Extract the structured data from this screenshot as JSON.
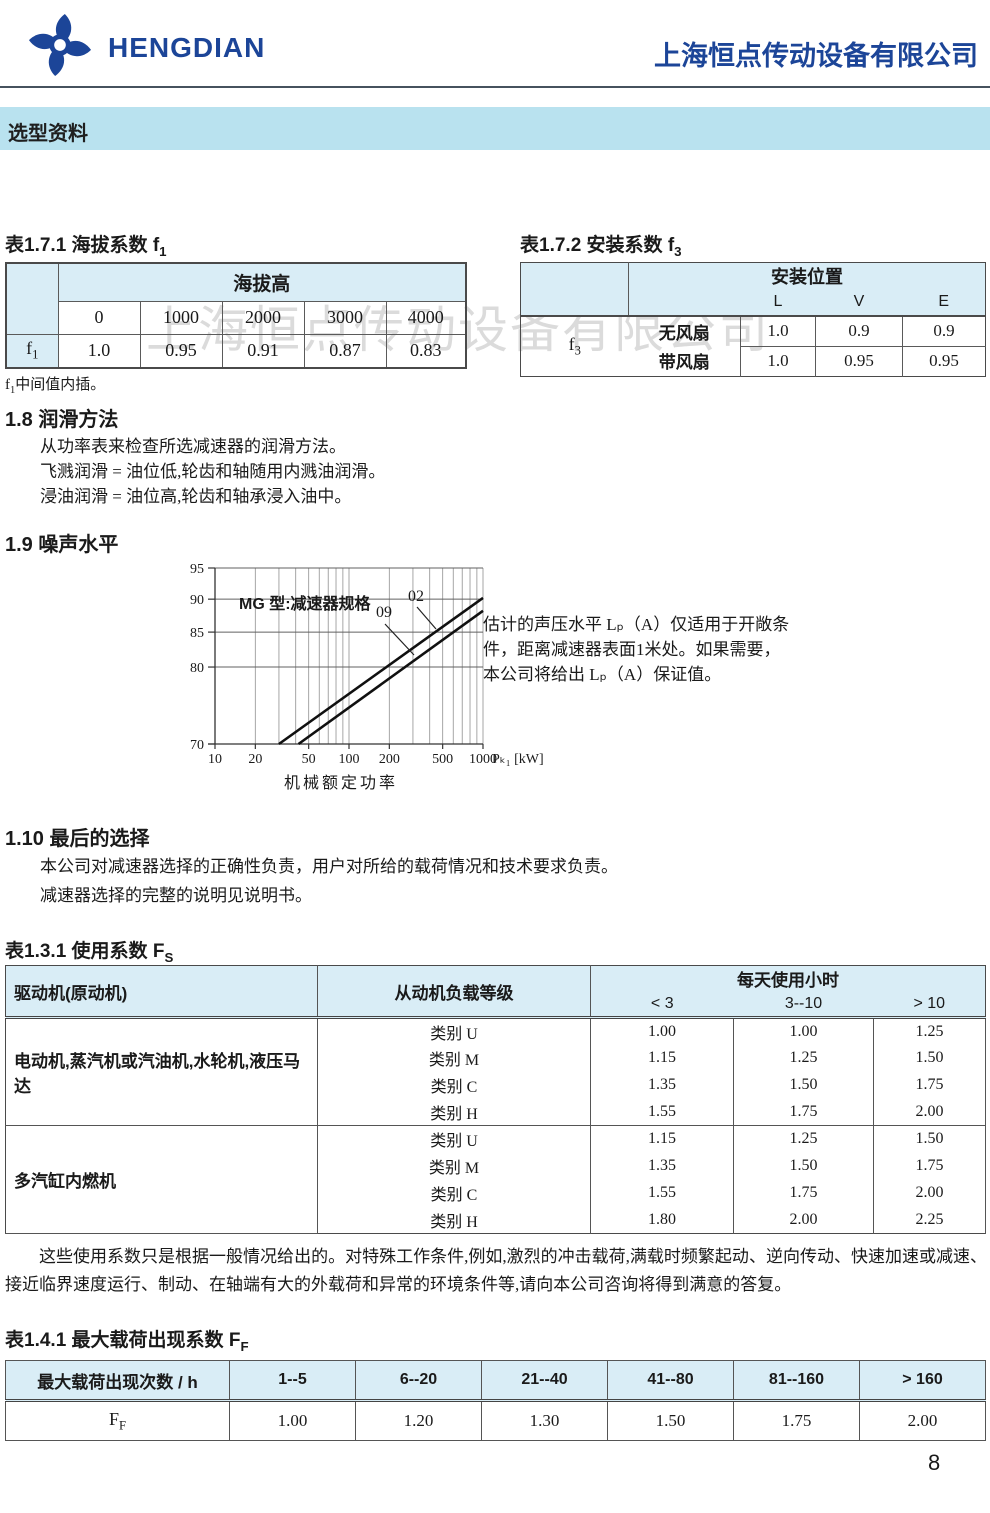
{
  "header": {
    "logo_text": "HENGDIAN",
    "company_name": "上海恒点传动设备有限公司",
    "banner": "选型资料"
  },
  "watermark": "上海恒点传动设备有限公司",
  "colors": {
    "brand_blue": "#1c4598",
    "banner_blue": "#b9e2ef",
    "table_header_blue": "#d9edf6",
    "watermark_gray": "#b0b0b0"
  },
  "table_f1": {
    "title_text": "表1.7.1 海拔系数 f",
    "title_sub": "1",
    "header": "海拔高",
    "row_label_text": "f",
    "row_label_sub": "1",
    "altitudes": [
      "0",
      "1000",
      "2000",
      "3000",
      "4000"
    ],
    "values": [
      "1.0",
      "0.95",
      "0.91",
      "0.87",
      "0.83"
    ],
    "note_f": "f",
    "note_sub": "1",
    "note_text": "中间值内插。"
  },
  "table_f3": {
    "title_text": "表1.7.2 安装系数 f",
    "title_sub": "3",
    "header": "安装位置",
    "col_labels": [
      "L",
      "V",
      "E"
    ],
    "row_label_text": "f",
    "row_label_sub": "3",
    "rows": [
      {
        "label": "无风扇",
        "values": [
          "1.0",
          "0.9",
          "0.9"
        ]
      },
      {
        "label": "带风扇",
        "values": [
          "1.0",
          "0.95",
          "0.95"
        ]
      }
    ]
  },
  "section_1_8": {
    "heading": "1.8 润滑方法",
    "lines": [
      "从功率表来检查所选减速器的润滑方法。",
      "飞溅润滑 = 油位低,轮齿和轴随用内溅油润滑。",
      "浸油润滑 = 油位高,轮齿和轴承浸入油中。"
    ]
  },
  "section_1_9": {
    "heading": "1.9 噪声水平",
    "note_lines": [
      "估计的声压水平 Lₚ（A）仅适用于开敞条",
      "件，距离减速器表面1米处。如果需要，",
      "本公司将给出 Lₚ（A）保证值。"
    ]
  },
  "chart_data": {
    "type": "line",
    "x_scale": "log",
    "y_scale": "log",
    "xlim": [
      10,
      1000
    ],
    "ylim": [
      70,
      95
    ],
    "x_ticks": [
      10,
      20,
      50,
      100,
      200,
      500,
      1000
    ],
    "x_minor": [
      10,
      20,
      30,
      40,
      50,
      60,
      70,
      80,
      90,
      100,
      200,
      300,
      400,
      500,
      600,
      700,
      800,
      900,
      1000
    ],
    "y_ticks": [
      70,
      80,
      85,
      90,
      95
    ],
    "xlabel": "机械额定功率",
    "x_unit": "Pₖ₁ [kW]",
    "annotation": "MG 型:减速器规格",
    "grid": true,
    "legend": "inline-labels",
    "series": [
      {
        "name": "02",
        "points": [
          [
            30,
            70
          ],
          [
            1000,
            90.2
          ]
        ]
      },
      {
        "name": "09",
        "points": [
          [
            42,
            70
          ],
          [
            1000,
            88.2
          ]
        ]
      }
    ]
  },
  "section_1_10": {
    "heading": "1.10 最后的选择",
    "lines": [
      "本公司对减速器选择的正确性负责，用户对所给的载荷情况和技术要求负责。",
      "减速器选择的完整的说明见说明书。"
    ]
  },
  "table_fs": {
    "title_text": "表1.3.1 使用系数 F",
    "title_sub": "S",
    "col1_header": "驱动机(原动机)",
    "col2_header": "从动机负载等级",
    "hours_header": "每天使用小时",
    "hour_cols": [
      "< 3",
      "3--10",
      "> 10"
    ],
    "groups": [
      {
        "driver": "电动机,蒸汽机或汽油机,水轮机,液压马达",
        "rows": [
          {
            "category": "类别 U",
            "values": [
              "1.00",
              "1.00",
              "1.25"
            ]
          },
          {
            "category": "类别 M",
            "values": [
              "1.15",
              "1.25",
              "1.50"
            ]
          },
          {
            "category": "类别 C",
            "values": [
              "1.35",
              "1.50",
              "1.75"
            ]
          },
          {
            "category": "类别 H",
            "values": [
              "1.55",
              "1.75",
              "2.00"
            ]
          }
        ]
      },
      {
        "driver": "多汽缸内燃机",
        "rows": [
          {
            "category": "类别 U",
            "values": [
              "1.15",
              "1.25",
              "1.50"
            ]
          },
          {
            "category": "类别 M",
            "values": [
              "1.35",
              "1.50",
              "1.75"
            ]
          },
          {
            "category": "类别 C",
            "values": [
              "1.55",
              "1.75",
              "2.00"
            ]
          },
          {
            "category": "类别 H",
            "values": [
              "1.80",
              "2.00",
              "2.25"
            ]
          }
        ]
      }
    ]
  },
  "usage_note": "这些使用系数只是根据一般情况给出的。对特殊工作条件,例如,激烈的冲击载荷,满载时频繁起动、逆向传动、快速加速或减速、接近临界速度运行、制动、在轴端有大的外载荷和异常的环境条件等,请向本公司咨询将得到满意的答复。",
  "table_ff": {
    "title_text": "表1.4.1 最大载荷出现系数 F",
    "title_sub": "F",
    "row_header": "最大载荷出现次数 / h",
    "col_headers": [
      "1--5",
      "6--20",
      "21--40",
      "41--80",
      "81--160",
      "> 160"
    ],
    "row_label_text": "F",
    "row_label_sub": "F",
    "values": [
      "1.00",
      "1.20",
      "1.30",
      "1.50",
      "1.75",
      "2.00"
    ]
  },
  "page_number": "8"
}
